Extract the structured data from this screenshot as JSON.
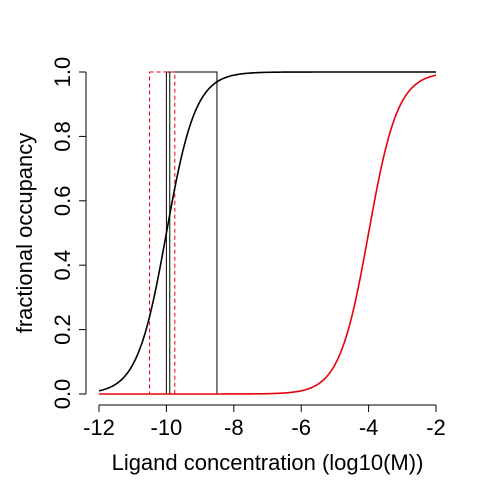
{
  "chart_data": {
    "type": "line",
    "title": "",
    "xlabel": "Ligand concentration (log10(M))",
    "ylabel": "fractional occupancy",
    "xlim": [
      -12,
      -2
    ],
    "ylim": [
      0,
      1
    ],
    "x_ticks": [
      -12,
      -10,
      -8,
      -6,
      -4,
      -2
    ],
    "x_tick_labels": [
      "-12",
      "-10",
      "-8",
      "-6",
      "-4",
      "-2"
    ],
    "y_ticks": [
      0,
      0.2,
      0.4,
      0.6,
      0.8,
      1
    ],
    "y_tick_labels": [
      "0.0",
      "0.2",
      "0.4",
      "0.6",
      "0.8",
      "1.0"
    ],
    "grid": false,
    "legend": "none",
    "series": [
      {
        "color": "#000000",
        "style": "solid",
        "curve": "hill",
        "log10_kd": -10,
        "hill_coefficient": 1,
        "x": [
          -12,
          -11.5,
          -11,
          -10.5,
          -10,
          -9.5,
          -9,
          -8.5,
          -8,
          -7,
          -6,
          -5,
          -4,
          -3,
          -2
        ],
        "y": [
          0.0099,
          0.0307,
          0.0909,
          0.2403,
          0.5,
          0.7597,
          0.9091,
          0.9693,
          0.9901,
          0.999,
          0.9999,
          1,
          1,
          1,
          1
        ]
      },
      {
        "color": "#e8000b",
        "style": "solid",
        "curve": "hill",
        "log10_kd": -4,
        "hill_coefficient": 1,
        "x": [
          -12,
          -8,
          -7,
          -6,
          -5.5,
          -5,
          -4.5,
          -4,
          -3.5,
          -3,
          -2.5,
          -2
        ],
        "y": [
          0,
          0.0001,
          0.001,
          0.0099,
          0.0307,
          0.0909,
          0.2403,
          0.5,
          0.7597,
          0.9091,
          0.9693,
          0.9901
        ]
      }
    ],
    "boxes": [
      {
        "color": "#000000",
        "style": "solid",
        "x0": -10,
        "x1": -8.5,
        "y0": 0,
        "y1": 1
      },
      {
        "color": "#e8000b",
        "style": "dashed",
        "x0": -10.5,
        "x1": -9.75,
        "y0": 0,
        "y1": 1
      }
    ],
    "vlines": [
      {
        "color": "#000000",
        "style": "solid",
        "x": -9.9
      }
    ]
  }
}
